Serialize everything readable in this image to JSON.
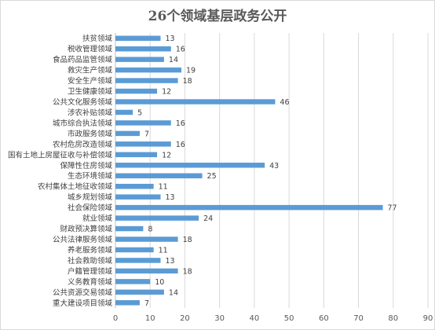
{
  "chart_data": {
    "type": "bar",
    "orientation": "horizontal",
    "title": "26个领域基层政务公开",
    "categories": [
      "扶贫领域",
      "税收管理领域",
      "食品药品监管领域",
      "救灾生产领域",
      "安全生产领域",
      "卫生健康领域",
      "公共文化服务领域",
      "涉农补贴领域",
      "城市综合执法领域",
      "市政服务领域",
      "农村危房改造领域",
      "国有土地上房屋征收与补偿领域",
      "保障性住房领域",
      "生态环境领域",
      "农村集体土地征收领域",
      "城乡规划领域",
      "社会保险领域",
      "就业领域",
      "财政预决算领域",
      "公共法律服务领域",
      "养老服务领域",
      "社会救助领域",
      "户籍管理领域",
      "义务教育领域",
      "公共资源交易领域",
      "重大建设项目领域"
    ],
    "values": [
      13,
      16,
      14,
      19,
      18,
      12,
      46,
      5,
      16,
      7,
      16,
      12,
      43,
      25,
      11,
      13,
      77,
      24,
      8,
      18,
      11,
      13,
      18,
      10,
      14,
      7
    ],
    "xlim": [
      0,
      90
    ],
    "xticks": [
      0,
      10,
      20,
      30,
      40,
      50,
      60,
      70,
      80,
      90
    ],
    "grid": "vertical",
    "legend": "none",
    "bar_color": "#5b9bd5"
  }
}
